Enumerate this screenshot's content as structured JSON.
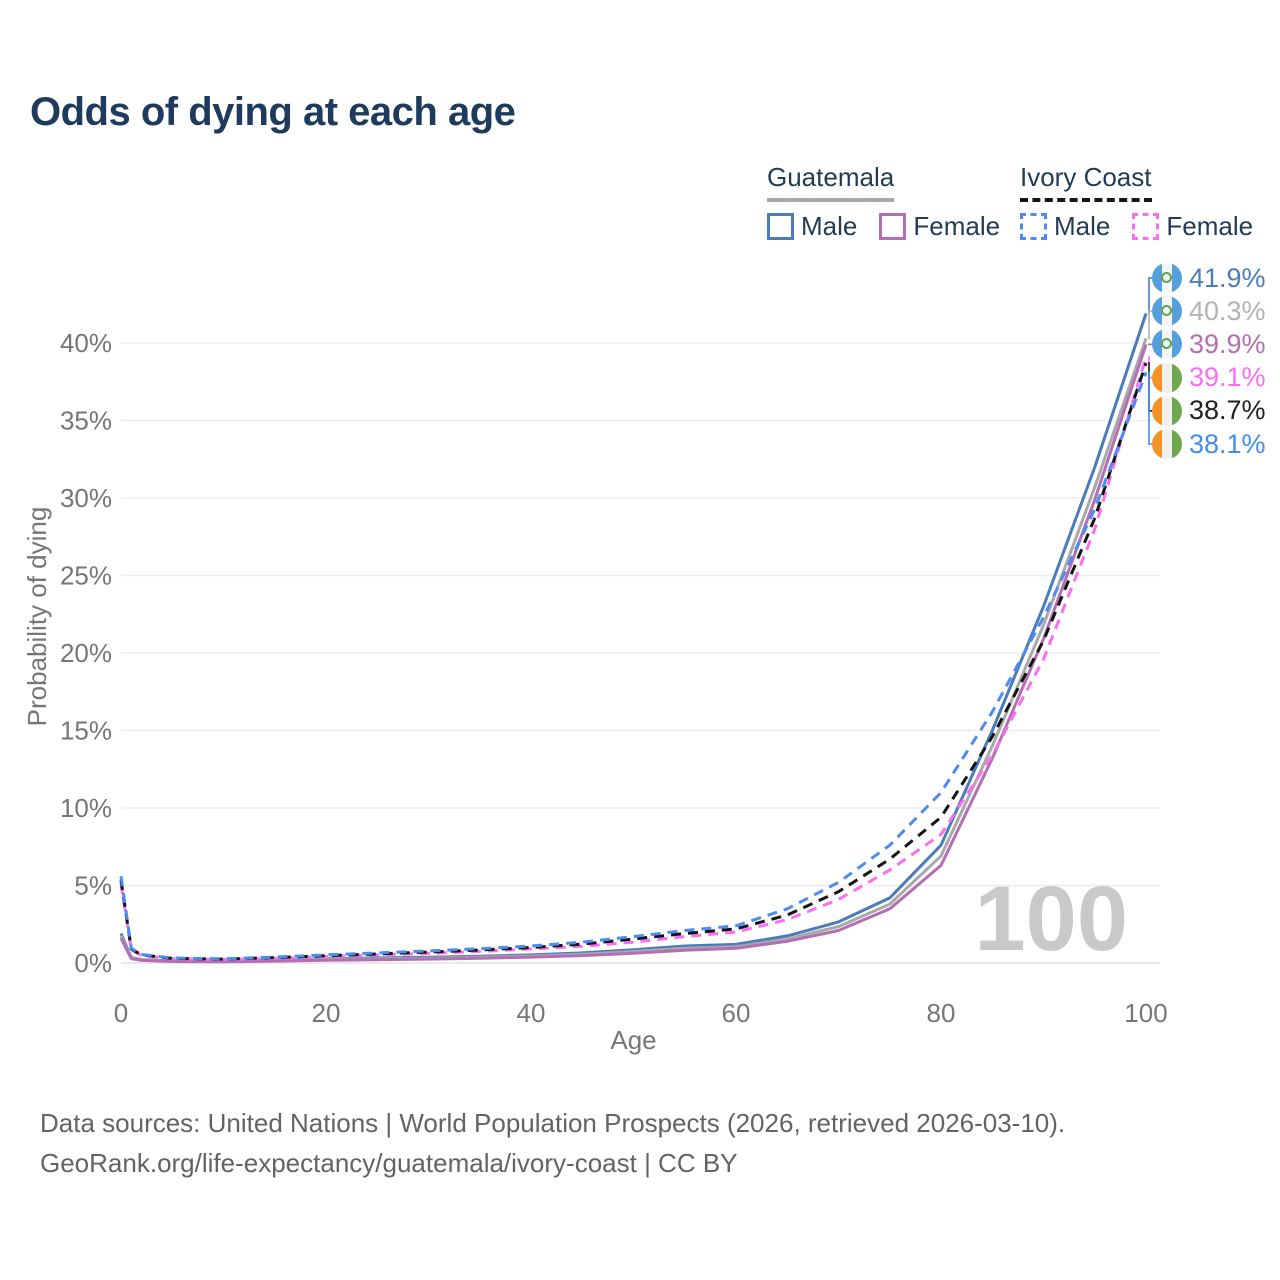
{
  "title": "Odds of dying at each age",
  "legend": {
    "groups": [
      {
        "name": "Guatemala",
        "line_style": "solid",
        "line_color": "#a9a9a9",
        "items": [
          {
            "label": "Male",
            "color": "#4b7cba"
          },
          {
            "label": "Female",
            "color": "#b46eb4"
          }
        ]
      },
      {
        "name": "Ivory Coast",
        "line_style": "dashed",
        "line_color": "#161616",
        "items": [
          {
            "label": "Male",
            "color": "#4d8bf0"
          },
          {
            "label": "Female",
            "color": "#fb6ef2"
          }
        ]
      }
    ]
  },
  "axis": {
    "x_label": "Age",
    "y_label": "Probability of dying",
    "x_ticks": [
      "0",
      "20",
      "40",
      "60",
      "80",
      "100"
    ],
    "y_ticks": [
      "0%",
      "5%",
      "10%",
      "15%",
      "20%",
      "25%",
      "30%",
      "35%",
      "40%"
    ]
  },
  "colors": {
    "title": "#1e3a5c",
    "axis_text": "#767676",
    "grid": "#ededed",
    "grid_zero": "#e2e2e2",
    "watermark": "#c9c9c9",
    "footer_text": "#636363",
    "legend_text": "#243b55"
  },
  "chart_data": {
    "type": "line",
    "title": "Odds of dying at each age",
    "xlabel": "Age",
    "ylabel": "Probability of dying",
    "xlim": [
      0,
      100
    ],
    "ylim": [
      0,
      40
    ],
    "grid": "horizontal",
    "legend_position": "top-right",
    "watermark": "100",
    "x_tick_values": [
      0,
      20,
      40,
      60,
      80,
      100
    ],
    "y_tick_values": [
      0,
      5,
      10,
      15,
      20,
      25,
      30,
      35,
      40
    ],
    "x": [
      0,
      1,
      2,
      5,
      10,
      15,
      20,
      25,
      30,
      35,
      40,
      45,
      50,
      55,
      60,
      65,
      70,
      75,
      80,
      85,
      90,
      95,
      100
    ],
    "series": [
      {
        "name": "Guatemala Male",
        "country": "Guatemala",
        "sex": "Male",
        "color": "#4b7cba",
        "dash": false,
        "end_value_pct": 41.9,
        "values": [
          1.9,
          0.35,
          0.22,
          0.13,
          0.11,
          0.18,
          0.28,
          0.33,
          0.37,
          0.43,
          0.52,
          0.65,
          0.85,
          1.1,
          1.2,
          1.75,
          2.65,
          4.2,
          7.6,
          15.0,
          23.0,
          32.0,
          41.9
        ]
      },
      {
        "name": "Guatemala Both sexes",
        "country": "Guatemala",
        "sex": "Both",
        "color": "#a9a9a9",
        "dash": false,
        "end_value_pct": 40.3,
        "values": [
          1.75,
          0.32,
          0.2,
          0.11,
          0.09,
          0.15,
          0.23,
          0.27,
          0.31,
          0.37,
          0.45,
          0.57,
          0.74,
          0.95,
          1.05,
          1.55,
          2.35,
          3.8,
          6.9,
          14.0,
          21.8,
          30.7,
          40.3
        ]
      },
      {
        "name": "Guatemala Female",
        "country": "Guatemala",
        "sex": "Female",
        "color": "#b46eb4",
        "dash": false,
        "end_value_pct": 39.9,
        "values": [
          1.6,
          0.28,
          0.17,
          0.1,
          0.08,
          0.12,
          0.18,
          0.21,
          0.25,
          0.31,
          0.38,
          0.48,
          0.63,
          0.82,
          0.95,
          1.4,
          2.1,
          3.5,
          6.3,
          13.2,
          20.9,
          29.9,
          39.9
        ]
      },
      {
        "name": "Ivory Coast Female",
        "country": "Ivory Coast",
        "sex": "Female",
        "color": "#fb6ef2",
        "dash": true,
        "end_value_pct": 39.1,
        "values": [
          5.1,
          0.85,
          0.48,
          0.28,
          0.22,
          0.3,
          0.42,
          0.52,
          0.62,
          0.75,
          0.9,
          1.08,
          1.35,
          1.7,
          2.0,
          2.8,
          4.1,
          6.0,
          8.3,
          13.4,
          19.6,
          28.0,
          39.1
        ]
      },
      {
        "name": "Ivory Coast Both sexes",
        "country": "Ivory Coast",
        "sex": "Both",
        "color": "#141414",
        "dash": true,
        "end_value_pct": 38.7,
        "values": [
          5.35,
          0.9,
          0.52,
          0.3,
          0.25,
          0.35,
          0.47,
          0.58,
          0.7,
          0.84,
          1.0,
          1.22,
          1.55,
          1.9,
          2.2,
          3.1,
          4.6,
          6.7,
          9.4,
          14.6,
          20.8,
          28.7,
          38.7
        ]
      },
      {
        "name": "Ivory Coast Male",
        "country": "Ivory Coast",
        "sex": "Male",
        "color": "#4d8bf0",
        "dash": true,
        "end_value_pct": 38.1,
        "values": [
          5.6,
          0.95,
          0.55,
          0.32,
          0.27,
          0.38,
          0.52,
          0.65,
          0.78,
          0.92,
          1.1,
          1.35,
          1.7,
          2.1,
          2.4,
          3.5,
          5.2,
          7.6,
          11.0,
          16.2,
          22.3,
          29.3,
          38.1
        ]
      }
    ],
    "end_labels": [
      {
        "text": "41.9%",
        "value": 41.9,
        "flag": "guatemala",
        "color": "#4b7cba"
      },
      {
        "text": "40.3%",
        "value": 40.3,
        "flag": "guatemala",
        "color": "#b3b3b3"
      },
      {
        "text": "39.9%",
        "value": 39.9,
        "flag": "guatemala",
        "color": "#b46eb4"
      },
      {
        "text": "39.1%",
        "value": 39.1,
        "flag": "ivory-coast",
        "color": "#fb6ef2"
      },
      {
        "text": "38.7%",
        "value": 38.7,
        "flag": "ivory-coast",
        "color": "#1f1f1f"
      },
      {
        "text": "38.1%",
        "value": 38.1,
        "flag": "ivory-coast",
        "color": "#418df2"
      }
    ]
  },
  "footer": {
    "line1": "Data sources: United Nations | World Population Prospects (2026, retrieved 2026-03-10).",
    "line2": "GeoRank.org/life-expectancy/guatemala/ivory-coast | CC BY"
  }
}
